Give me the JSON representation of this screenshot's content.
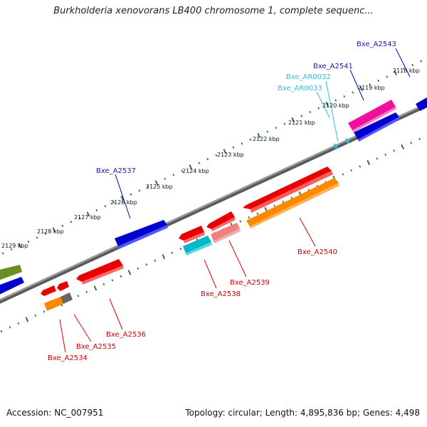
{
  "title": "Burkholderia xenovorans LB400 chromosome 1, complete sequenc...",
  "ticks": [
    "2118 kbp",
    "2119 kbp",
    "2120 kbp",
    "2121 kbp",
    "2122 kbp",
    "2123 kbp",
    "2124 kbp",
    "2125 kbp",
    "2126 kbp",
    "2127 kbp",
    "2128 kbp",
    "2129 kbp"
  ],
  "labels": {
    "a2543": "Bxe_A2543",
    "a2541": "Bxe_A2541",
    "ar0032": "Bxe_AR0032",
    "ar0033": "Bxe_AR0033",
    "a2537": "Bxe_A2537",
    "a2540": "Bxe_A2540",
    "a2539": "Bxe_A2539",
    "a2538": "Bxe_A2538",
    "a2536": "Bxe_A2536",
    "a2535": "Bxe_A2535",
    "a2534": "Bxe_A2534"
  },
  "colors": {
    "backbone": "#8a8a8a",
    "plus_strand_cds": "#0000cc",
    "minus_strand_cds": "#e80000",
    "trna": "#33bbdd",
    "label_plus": "#1a1aaa",
    "label_minus": "#cc0000",
    "label_trna": "#33bbdd",
    "tick_marks": "#117711"
  },
  "footer": {
    "accession": "Accession: NC_007951",
    "topology": "Topology: circular; Length: 4,895,836 bp; Genes: 4,498"
  }
}
